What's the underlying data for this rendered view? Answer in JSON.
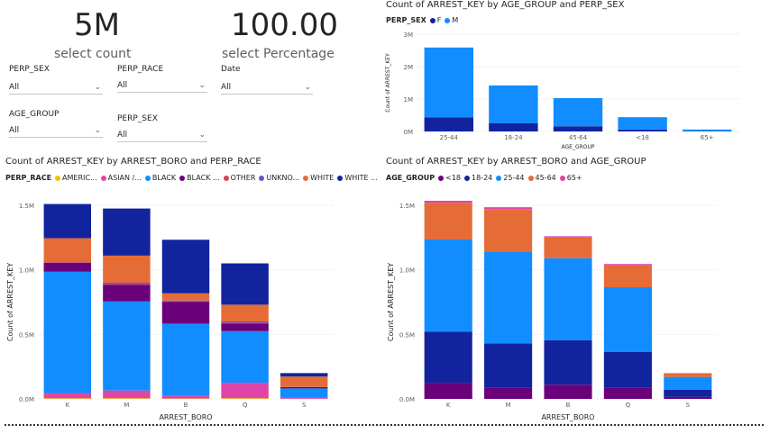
{
  "cards": [
    {
      "value": "5M",
      "label": "select count"
    },
    {
      "value": "100.00",
      "label": "select Percentage"
    }
  ],
  "slicers": [
    {
      "id": "perp-sex-1",
      "label": "PERP_SEX",
      "value": "All"
    },
    {
      "id": "perp-race-1",
      "label": "PERP_RACE",
      "value": "All"
    },
    {
      "id": "date",
      "label": "Date",
      "value": "All"
    },
    {
      "id": "age-group",
      "label": "AGE_GROUP",
      "value": "All"
    },
    {
      "id": "perp-sex-2",
      "label": "PERP_SEX",
      "value": "All"
    }
  ],
  "chart_data": [
    {
      "type": "bar",
      "title": "Count of ARREST_KEY by AGE_GROUP and PERP_SEX",
      "legend_title": "PERP_SEX",
      "legend_position": "top-left",
      "xlabel": "AGE_GROUP",
      "ylabel": "Count of ARREST_KEY",
      "ylim": [
        0,
        3000000
      ],
      "yticks": [
        "0M",
        "1M",
        "2M",
        "3M"
      ],
      "categories": [
        "25-44",
        "18-24",
        "45-64",
        "<18",
        "65+"
      ],
      "series": [
        {
          "name": "F",
          "color": "#12239e",
          "values": [
            430000,
            250000,
            160000,
            60000,
            10000
          ]
        },
        {
          "name": "M",
          "color": "#118dff",
          "values": [
            2160000,
            1170000,
            870000,
            380000,
            50000
          ]
        }
      ]
    },
    {
      "type": "bar",
      "title": "Count of ARREST_KEY by ARREST_BORO and PERP_RACE",
      "legend_title": "PERP_RACE",
      "legend_position": "top-left",
      "xlabel": "ARREST_BORO",
      "ylabel": "Count of ARREST_KEY",
      "ylim": [
        0,
        1500000
      ],
      "yticks": [
        "0.0M",
        "0.5M",
        "1.0M",
        "1.5M"
      ],
      "categories": [
        "K",
        "M",
        "B",
        "Q",
        "S"
      ],
      "series": [
        {
          "name": "AMERIC...",
          "color": "#e8c400",
          "values": [
            5000,
            5000,
            3000,
            5000,
            1000
          ]
        },
        {
          "name": "ASIAN /...",
          "color": "#e044a7",
          "values": [
            40000,
            60000,
            20000,
            120000,
            10000
          ]
        },
        {
          "name": "BLACK",
          "color": "#118dff",
          "values": [
            940000,
            690000,
            560000,
            400000,
            70000
          ]
        },
        {
          "name": "BLACK ...",
          "color": "#6b007b",
          "values": [
            70000,
            130000,
            170000,
            60000,
            10000
          ]
        },
        {
          "name": "OTHER",
          "color": "#d64550",
          "values": [
            5000,
            5000,
            5000,
            5000,
            1000
          ]
        },
        {
          "name": "UNKNO...",
          "color": "#744ec2",
          "values": [
            5000,
            10000,
            5000,
            10000,
            1000
          ]
        },
        {
          "name": "WHITE",
          "color": "#e66c37",
          "values": [
            180000,
            210000,
            55000,
            130000,
            80000
          ]
        },
        {
          "name": "WHITE ...",
          "color": "#12239e",
          "values": [
            265000,
            365000,
            415000,
            320000,
            27000
          ]
        }
      ]
    },
    {
      "type": "bar",
      "title": "Count of ARREST_KEY by ARREST_BORO and AGE_GROUP",
      "legend_title": "AGE_GROUP",
      "legend_position": "top-left",
      "xlabel": "ARREST_BORO",
      "ylabel": "Count of ARREST_KEY",
      "ylim": [
        0,
        1500000
      ],
      "yticks": [
        "0.0M",
        "0.5M",
        "1.0M",
        "1.5M"
      ],
      "categories": [
        "K",
        "M",
        "B",
        "Q",
        "S"
      ],
      "series": [
        {
          "name": "<18",
          "color": "#6b007b",
          "values": [
            125000,
            85000,
            110000,
            85000,
            15000
          ]
        },
        {
          "name": "18-24",
          "color": "#12239e",
          "values": [
            395000,
            345000,
            345000,
            280000,
            55000
          ]
        },
        {
          "name": "25-44",
          "color": "#118dff",
          "values": [
            715000,
            710000,
            635000,
            500000,
            100000
          ]
        },
        {
          "name": "45-64",
          "color": "#e66c37",
          "values": [
            285000,
            330000,
            160000,
            170000,
            28000
          ]
        },
        {
          "name": "65+",
          "color": "#e044a7",
          "values": [
            15000,
            15000,
            10000,
            10000,
            2000
          ]
        }
      ]
    }
  ]
}
